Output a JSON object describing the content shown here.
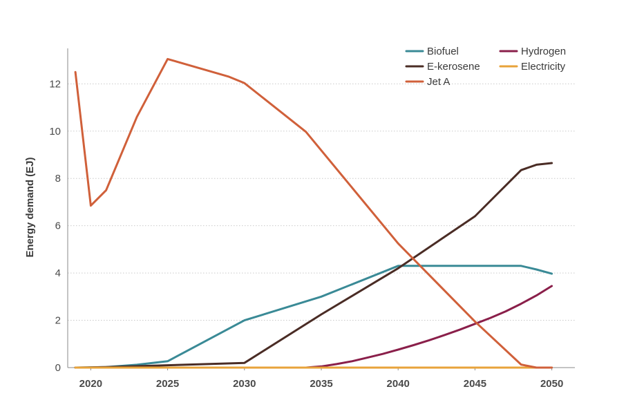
{
  "chart_data": {
    "type": "line",
    "title": "",
    "xlabel": "",
    "ylabel": "Energy demand (EJ)",
    "xlim": [
      2018.5,
      2051.5
    ],
    "ylim": [
      0,
      13.5
    ],
    "x_ticks": [
      "2020",
      "2025",
      "2030",
      "2035",
      "2040",
      "2045",
      "2050"
    ],
    "y_ticks": [
      "0",
      "2",
      "4",
      "6",
      "8",
      "10",
      "12"
    ],
    "grid": "horizontal-dotted",
    "legend_position": "top-right",
    "series": [
      {
        "name": "Biofuel",
        "color": "#3a8a96",
        "points": [
          [
            2019,
            0
          ],
          [
            2021,
            0.02
          ],
          [
            2023,
            0.12
          ],
          [
            2025,
            0.27
          ],
          [
            2030,
            2.0
          ],
          [
            2035,
            3.0
          ],
          [
            2040,
            4.3
          ],
          [
            2042,
            4.3
          ],
          [
            2045,
            4.3
          ],
          [
            2048,
            4.3
          ],
          [
            2049,
            4.15
          ],
          [
            2050,
            3.97
          ]
        ]
      },
      {
        "name": "Hydrogen",
        "color": "#8a1f4a",
        "points": [
          [
            2019,
            0
          ],
          [
            2034,
            0
          ],
          [
            2035,
            0.05
          ],
          [
            2036,
            0.15
          ],
          [
            2037,
            0.27
          ],
          [
            2038,
            0.42
          ],
          [
            2039,
            0.58
          ],
          [
            2040,
            0.76
          ],
          [
            2041,
            0.95
          ],
          [
            2042,
            1.15
          ],
          [
            2043,
            1.37
          ],
          [
            2044,
            1.6
          ],
          [
            2045,
            1.85
          ],
          [
            2046,
            2.1
          ],
          [
            2047,
            2.38
          ],
          [
            2048,
            2.7
          ],
          [
            2049,
            3.05
          ],
          [
            2050,
            3.45
          ]
        ]
      },
      {
        "name": "E-kerosene",
        "color": "#4a2c25",
        "points": [
          [
            2019,
            0
          ],
          [
            2021,
            0.02
          ],
          [
            2025,
            0.1
          ],
          [
            2030,
            0.2
          ],
          [
            2035,
            2.25
          ],
          [
            2040,
            4.2
          ],
          [
            2045,
            6.4
          ],
          [
            2048,
            8.35
          ],
          [
            2049,
            8.58
          ],
          [
            2050,
            8.65
          ]
        ]
      },
      {
        "name": "Electricity",
        "color": "#e8a33a",
        "points": [
          [
            2019,
            0
          ],
          [
            2050,
            0
          ]
        ]
      },
      {
        "name": "Jet A",
        "color": "#d0603a",
        "points": [
          [
            2019,
            12.5
          ],
          [
            2020,
            6.85
          ],
          [
            2021,
            7.5
          ],
          [
            2023,
            10.6
          ],
          [
            2025,
            13.05
          ],
          [
            2029,
            12.3
          ],
          [
            2030,
            12.03
          ],
          [
            2034,
            9.97
          ],
          [
            2040,
            5.25
          ],
          [
            2045,
            1.95
          ],
          [
            2048,
            0.13
          ],
          [
            2049,
            0
          ],
          [
            2050,
            0
          ]
        ]
      }
    ]
  },
  "legend": {
    "items": [
      {
        "label": "Biofuel",
        "color": "#3a8a96"
      },
      {
        "label": "Hydrogen",
        "color": "#8a1f4a"
      },
      {
        "label": "E-kerosene",
        "color": "#4a2c25"
      },
      {
        "label": "Electricity",
        "color": "#e8a33a"
      },
      {
        "label": "Jet A",
        "color": "#d0603a"
      }
    ]
  }
}
